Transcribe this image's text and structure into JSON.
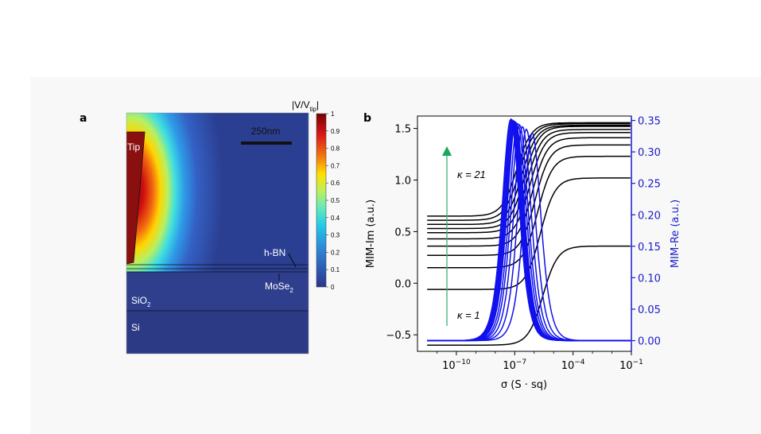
{
  "panel_a": {
    "label": "a",
    "colorbar": {
      "title_main": "|V/V",
      "title_sub": "tip",
      "title_end": "|",
      "ticks": [
        "1",
        "0.9",
        "0.8",
        "0.7",
        "0.6",
        "0.5",
        "0.4",
        "0.3",
        "0.2",
        "0.1",
        "0"
      ]
    },
    "scalebar_label": "250nm",
    "regions": {
      "tip": "Tip",
      "hbn": "h-BN",
      "mose2_main": "MoSe",
      "mose2_sub": "2",
      "sio2_main": "SiO",
      "sio2_sub": "2",
      "si": "Si"
    }
  },
  "panel_b": {
    "label": "b",
    "kappa_top": "κ = 21",
    "kappa_bottom": "κ = 1"
  },
  "colors": {
    "im_curves": "#000000",
    "re_curves": "#1010ee",
    "right_axis": "#1a1acc",
    "arrow": "#3ab37a",
    "arrow_head": "#17a85a"
  },
  "chart_data": {
    "type": "line",
    "title": "",
    "xlabel": "σ (S · sq)",
    "xscale": "log",
    "xlim_log10": [
      -12,
      -1
    ],
    "x_ticks": [
      {
        "base": "10",
        "exp": "−10"
      },
      {
        "base": "10",
        "exp": "−7"
      },
      {
        "base": "10",
        "exp": "−4"
      },
      {
        "base": "10",
        "exp": "−1"
      }
    ],
    "ylabel_left": "MIM-Im (a.u.)",
    "ylim_left": [
      -0.66,
      1.62
    ],
    "y_ticks_left": [
      "1.5",
      "1.0",
      "0.5",
      "0.0",
      "−0.5"
    ],
    "ylabel_right": "MIM-Re (a.u.)",
    "ylim_right": [
      -0.017,
      0.357
    ],
    "y_ticks_right": [
      "0.35",
      "0.30",
      "0.25",
      "0.20",
      "0.15",
      "0.10",
      "0.05",
      "0.00"
    ],
    "im_series": [
      {
        "name": "κ=1",
        "low": -0.6,
        "high": 0.36
      },
      {
        "name": "κ=3",
        "low": -0.06,
        "high": 1.02
      },
      {
        "name": "κ=5",
        "low": 0.15,
        "high": 1.23
      },
      {
        "name": "κ=7",
        "low": 0.27,
        "high": 1.34
      },
      {
        "name": "κ=9",
        "low": 0.36,
        "high": 1.41
      },
      {
        "name": "κ=11",
        "low": 0.43,
        "high": 1.46
      },
      {
        "name": "κ=13",
        "low": 0.49,
        "high": 1.49
      },
      {
        "name": "κ=15",
        "low": 0.53,
        "high": 1.52
      },
      {
        "name": "κ=17",
        "low": 0.57,
        "high": 1.53
      },
      {
        "name": "κ=19",
        "low": 0.61,
        "high": 1.545
      },
      {
        "name": "κ=21",
        "low": 0.65,
        "high": 1.555
      }
    ],
    "re_series": [
      {
        "name": "κ=1",
        "peak_log10": -6.1,
        "peak": 0.33
      },
      {
        "name": "κ=3",
        "peak_log10": -6.4,
        "peak": 0.336
      },
      {
        "name": "κ=5",
        "peak_log10": -6.6,
        "peak": 0.34
      },
      {
        "name": "κ=7",
        "peak_log10": -6.75,
        "peak": 0.343
      },
      {
        "name": "κ=9",
        "peak_log10": -6.85,
        "peak": 0.345
      },
      {
        "name": "κ=11",
        "peak_log10": -6.95,
        "peak": 0.347
      },
      {
        "name": "κ=13",
        "peak_log10": -7.0,
        "peak": 0.348
      },
      {
        "name": "κ=15",
        "peak_log10": -7.05,
        "peak": 0.349
      },
      {
        "name": "κ=17",
        "peak_log10": -7.1,
        "peak": 0.35
      },
      {
        "name": "κ=19",
        "peak_log10": -7.15,
        "peak": 0.351
      },
      {
        "name": "κ=21",
        "peak_log10": -7.2,
        "peak": 0.352
      }
    ]
  }
}
